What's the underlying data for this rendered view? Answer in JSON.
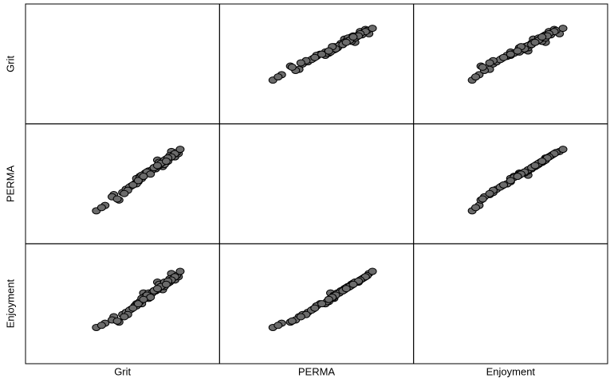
{
  "chart_data": {
    "type": "scatter-matrix",
    "color": "#6b6b6b",
    "variables": [
      {
        "name": "Grit",
        "lim": [
          0,
          100
        ],
        "values": [
          72,
          65,
          58,
          80,
          45,
          70,
          62,
          75,
          68,
          55,
          78,
          60,
          50,
          73,
          66,
          82,
          40,
          69,
          77,
          63,
          57,
          71,
          74,
          61,
          52,
          79,
          67,
          64,
          48,
          76,
          59,
          70,
          81,
          35,
          66,
          72,
          54,
          68,
          75,
          62,
          44,
          71,
          77,
          58,
          65,
          80,
          69,
          53,
          73,
          60,
          38,
          74,
          63,
          67,
          56,
          78,
          70,
          61,
          47,
          76,
          64,
          72,
          59,
          68,
          83,
          51,
          66,
          75,
          62,
          70
        ]
      },
      {
        "name": "PERMA",
        "lim": [
          0,
          100
        ],
        "values": [
          68,
          60,
          55,
          75,
          40,
          72,
          58,
          70,
          65,
          48,
          80,
          57,
          42,
          66,
          62,
          78,
          30,
          64,
          74,
          59,
          50,
          70,
          68,
          55,
          45,
          77,
          63,
          61,
          35,
          71,
          52,
          66,
          79,
          25,
          60,
          69,
          47,
          65,
          73,
          57,
          38,
          67,
          76,
          50,
          62,
          78,
          64,
          44,
          70,
          56,
          28,
          72,
          60,
          63,
          49,
          75,
          66,
          58,
          36,
          74,
          61,
          69,
          53,
          65,
          82,
          41,
          59,
          71,
          57,
          67
        ]
      },
      {
        "name": "Enjoyment",
        "lim": [
          0,
          100
        ],
        "values": [
          65,
          55,
          50,
          72,
          38,
          70,
          60,
          68,
          62,
          45,
          78,
          52,
          40,
          63,
          60,
          75,
          32,
          62,
          70,
          55,
          48,
          68,
          66,
          50,
          42,
          74,
          60,
          58,
          33,
          69,
          50,
          64,
          76,
          28,
          58,
          66,
          44,
          62,
          70,
          54,
          35,
          65,
          73,
          48,
          60,
          75,
          62,
          40,
          67,
          52,
          30,
          70,
          57,
          60,
          46,
          72,
          63,
          55,
          34,
          71,
          58,
          66,
          50,
          62,
          80,
          38,
          56,
          68,
          54,
          64
        ]
      }
    ]
  }
}
